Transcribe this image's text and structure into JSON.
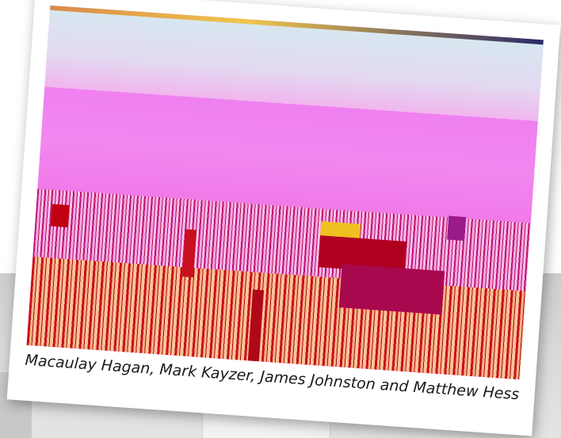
{
  "photo": {
    "caption": "Macaulay Hagan, Mark Kayzer, James Johnston and Matthew Hess"
  },
  "colors": {
    "print_border": "#ffffff",
    "photo_magenta": "#f27cf2",
    "crowd_red": "#c8101e",
    "crowd_peach": "#f7b680",
    "backdrop_grey": "#d4d4d4"
  }
}
